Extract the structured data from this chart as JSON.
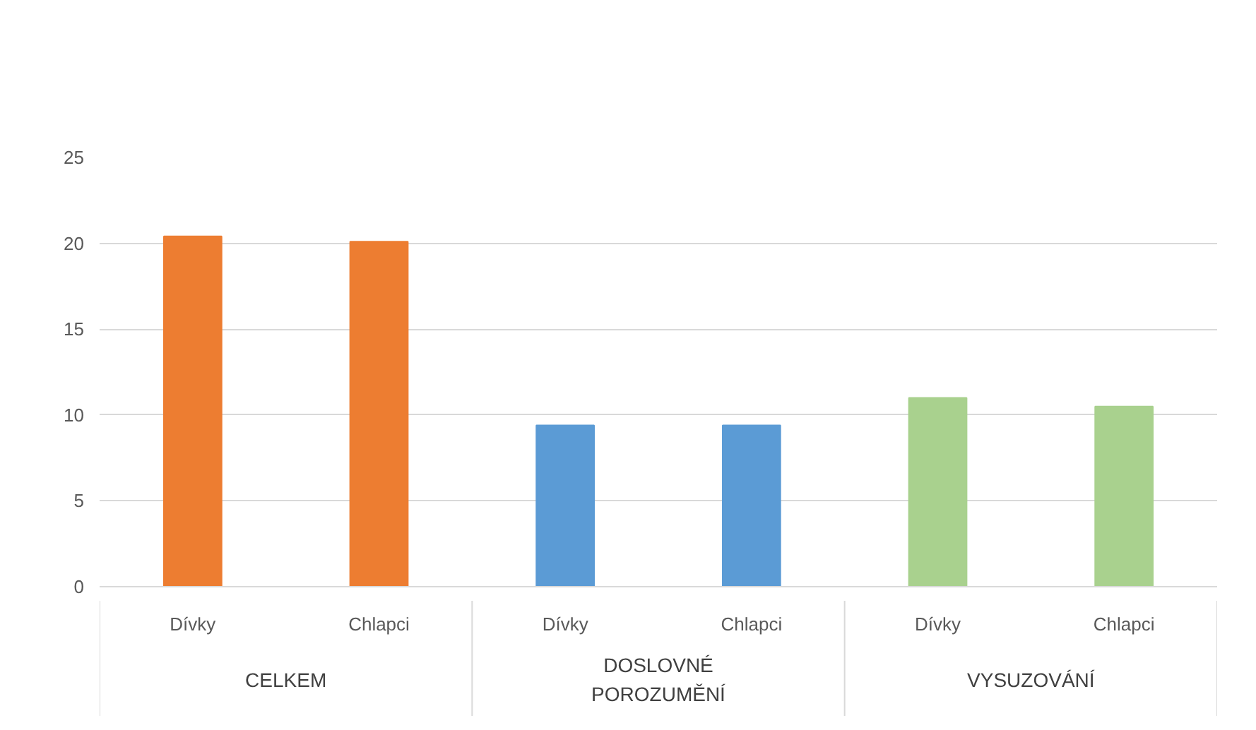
{
  "chart_data": {
    "type": "bar",
    "categories": [
      "Dívky",
      "Chlapci",
      "Dívky",
      "Chlapci",
      "Dívky",
      "Chlapci"
    ],
    "values": [
      20.4,
      20.1,
      9.4,
      9.4,
      11.0,
      10.5
    ],
    "colors": [
      "#ed7d31",
      "#ed7d31",
      "#5b9bd5",
      "#5b9bd5",
      "#a9d18e",
      "#a9d18e"
    ],
    "annotations": [
      "CELKEM",
      "DOSLOVNÉ POROZUMĚNÍ",
      "VYSUZOVÁNÍ"
    ],
    "ylim": [
      0,
      25
    ],
    "yticks": [
      0,
      5,
      10,
      15,
      20,
      25
    ],
    "grid": "y"
  }
}
